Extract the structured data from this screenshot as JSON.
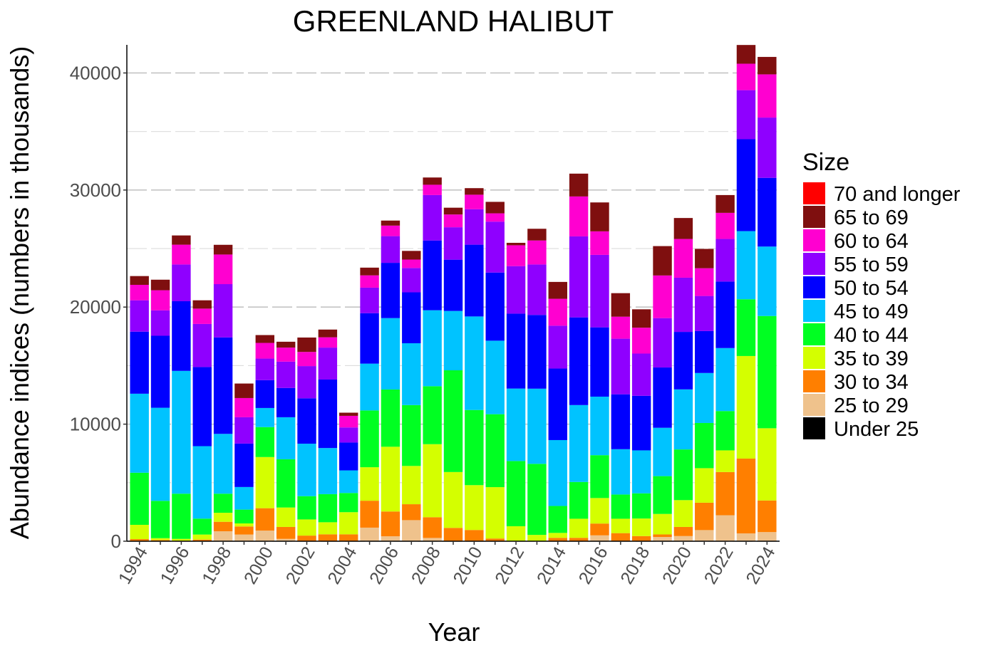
{
  "chart_data": {
    "type": "bar",
    "stacked": true,
    "title": "GREENLAND HALIBUT",
    "xlabel": "Year",
    "ylabel": "Abundance indices (numbers in thousands)",
    "ylim": [
      0,
      42400
    ],
    "y_ticks": [
      0,
      10000,
      20000,
      30000,
      40000
    ],
    "x_tick_labels": [
      "1994",
      "1996",
      "1998",
      "2000",
      "2002",
      "2004",
      "2006",
      "2008",
      "2010",
      "2012",
      "2014",
      "2016",
      "2018",
      "2020",
      "2022",
      "2024"
    ],
    "grid": true,
    "legend": {
      "title": "Size",
      "placement": "right"
    },
    "categories": [
      1994,
      1995,
      1996,
      1997,
      1998,
      1999,
      2000,
      2001,
      2002,
      2003,
      2004,
      2005,
      2006,
      2007,
      2008,
      2009,
      2010,
      2011,
      2012,
      2013,
      2014,
      2015,
      2016,
      2017,
      2018,
      2019,
      2020,
      2021,
      2022,
      2023,
      2024
    ],
    "series": [
      {
        "name": "Under 25",
        "color": "#000000",
        "values": [
          0,
          0,
          0,
          0,
          0,
          0,
          0,
          0,
          0,
          0,
          0,
          0,
          0,
          0,
          0,
          0,
          0,
          0,
          0,
          0,
          0,
          0,
          0,
          0,
          0,
          0,
          0,
          0,
          0,
          0,
          0
        ]
      },
      {
        "name": "25 to 29",
        "color": "#EFC28C",
        "values": [
          0,
          0,
          0,
          0,
          850,
          570,
          910,
          200,
          0,
          0,
          0,
          1160,
          420,
          1800,
          280,
          0,
          0,
          0,
          0,
          0,
          0,
          0,
          500,
          0,
          0,
          360,
          440,
          950,
          2220,
          670,
          780
        ]
      },
      {
        "name": "30 to 34",
        "color": "#FF7F00",
        "values": [
          180,
          100,
          50,
          140,
          810,
          690,
          1910,
          1020,
          480,
          590,
          590,
          2300,
          2120,
          1360,
          1770,
          1140,
          960,
          230,
          0,
          0,
          290,
          290,
          1010,
          690,
          440,
          220,
          780,
          2340,
          3690,
          6390,
          2700
        ]
      },
      {
        "name": "35 to 39",
        "color": "#D4FF00",
        "values": [
          1220,
          160,
          150,
          430,
          770,
          260,
          4370,
          1660,
          1380,
          1030,
          1890,
          2860,
          5530,
          3270,
          6240,
          4770,
          3830,
          4390,
          1280,
          540,
          420,
          1630,
          2180,
          1230,
          1500,
          1750,
          2290,
          2950,
          1850,
          8760,
          6170
        ]
      },
      {
        "name": "40 to 44",
        "color": "#00FF22",
        "values": [
          4450,
          3190,
          3860,
          1360,
          1630,
          1180,
          2560,
          4120,
          1990,
          2400,
          1640,
          4850,
          4890,
          5200,
          4950,
          8690,
          6420,
          6230,
          5570,
          6070,
          2300,
          3140,
          3660,
          2070,
          2150,
          3230,
          4330,
          3860,
          3360,
          4850,
          9590
        ]
      },
      {
        "name": "45 to 49",
        "color": "#00C3FF",
        "values": [
          6750,
          7950,
          10490,
          6190,
          5110,
          1930,
          1630,
          3590,
          4480,
          3940,
          1930,
          4000,
          6100,
          5280,
          6490,
          5070,
          7990,
          6280,
          6190,
          6420,
          5630,
          6570,
          5000,
          3870,
          3670,
          4130,
          5130,
          4270,
          5380,
          5820,
          5930
        ]
      },
      {
        "name": "50 to 54",
        "color": "#0000FF",
        "values": [
          5300,
          6150,
          5950,
          6760,
          8240,
          3710,
          2380,
          2500,
          3880,
          5850,
          2380,
          4310,
          4720,
          4350,
          5960,
          4380,
          6130,
          5820,
          6400,
          6300,
          6110,
          7490,
          5920,
          4690,
          4660,
          5150,
          4910,
          3580,
          5680,
          7850,
          5870
        ]
      },
      {
        "name": "55 to 59",
        "color": "#8F00FF",
        "values": [
          2680,
          2170,
          3140,
          3680,
          4550,
          2250,
          1840,
          2250,
          2750,
          2730,
          1290,
          2180,
          2280,
          2080,
          3880,
          2770,
          3030,
          4350,
          4060,
          4310,
          3660,
          6920,
          6190,
          4750,
          3610,
          4220,
          4630,
          3000,
          3640,
          4190,
          5150
        ]
      },
      {
        "name": "60 to 64",
        "color": "#FF00D0",
        "values": [
          1320,
          1720,
          1690,
          1310,
          2530,
          1640,
          1340,
          1200,
          1210,
          880,
          990,
          1050,
          900,
          720,
          880,
          1090,
          1240,
          710,
          1780,
          2050,
          2300,
          3410,
          2010,
          1880,
          2210,
          3640,
          3310,
          2370,
          2230,
          2260,
          3690
        ]
      },
      {
        "name": "65 to 69",
        "color": "#7F0F0F",
        "values": [
          750,
          900,
          790,
          710,
          830,
          1240,
          670,
          500,
          1230,
          660,
          270,
          660,
          430,
          740,
          620,
          580,
          560,
          980,
          210,
          1000,
          1440,
          1950,
          2470,
          2010,
          1570,
          2510,
          1790,
          1650,
          1520,
          1600,
          1490
        ]
      },
      {
        "name": "70 and longer",
        "color": "#FF0000",
        "values": [
          0,
          0,
          0,
          0,
          0,
          0,
          0,
          0,
          0,
          0,
          0,
          0,
          0,
          0,
          0,
          0,
          0,
          0,
          0,
          0,
          0,
          0,
          0,
          0,
          0,
          0,
          0,
          0,
          0,
          0,
          0
        ]
      }
    ]
  }
}
